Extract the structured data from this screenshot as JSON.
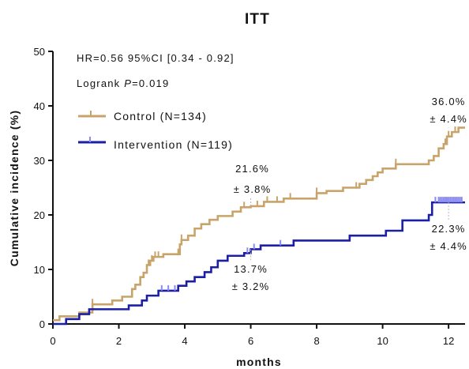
{
  "chart_data": {
    "type": "line",
    "chart_style": "kaplan-meier-step",
    "title": "ITT",
    "xlabel": "months",
    "ylabel": "Cumulative incidence (%)",
    "xlim": [
      0,
      12.5
    ],
    "ylim": [
      0,
      50
    ],
    "xticks": [
      0,
      2,
      4,
      6,
      8,
      10,
      12
    ],
    "yticks": [
      0,
      10,
      20,
      30,
      40,
      50
    ],
    "grid": false,
    "legend_position": "top-left",
    "stats": {
      "hr": "HR=0.56 95%CI [0.34 - 0.92]",
      "logrank_prefix": "Logrank ",
      "logrank_p": "P",
      "logrank_value": "=0.019"
    },
    "series": [
      {
        "name": "Control (N=134)",
        "color": "#C9A46A",
        "x": [
          0,
          0.2,
          0.5,
          0.8,
          1.2,
          1.6,
          1.8,
          2.1,
          2.4,
          2.5,
          2.65,
          2.75,
          2.85,
          2.95,
          3.05,
          3.2,
          3.35,
          3.85,
          3.9,
          4.1,
          4.3,
          4.5,
          4.75,
          5.0,
          5.45,
          5.7,
          5.85,
          6.0,
          6.1,
          6.4,
          7.0,
          7.5,
          8.0,
          8.3,
          8.8,
          9.3,
          9.5,
          9.7,
          9.85,
          10.0,
          10.2,
          10.4,
          11.3,
          11.4,
          11.55,
          11.7,
          11.85,
          11.95,
          12.1,
          12.3,
          12.5
        ],
        "y": [
          0.7,
          1.4,
          1.4,
          2.1,
          3.6,
          3.6,
          4.3,
          5.0,
          6.4,
          7.2,
          8.6,
          9.4,
          10.8,
          11.6,
          12.3,
          12.3,
          12.8,
          14.6,
          15.4,
          16.2,
          17.5,
          18.3,
          19.1,
          19.8,
          20.6,
          21.4,
          21.4,
          21.6,
          21.6,
          22.4,
          23.0,
          23.0,
          24.0,
          24.4,
          25.0,
          25.7,
          26.4,
          27.1,
          27.8,
          28.5,
          28.5,
          29.3,
          29.3,
          30.0,
          30.8,
          32.2,
          33.0,
          34.4,
          35.2,
          36.0,
          36.0
        ],
        "censor_x": [
          1.2,
          2.9,
          3.0,
          3.1,
          3.2,
          3.8,
          3.9,
          5.8,
          6.2,
          6.5,
          6.8,
          7.2,
          8.0,
          9.2,
          10.4,
          11.9,
          12.0,
          12.2
        ],
        "annotations": [
          {
            "x": 6.0,
            "y": 21.6,
            "value": "21.6%",
            "error": "± 3.8%"
          },
          {
            "x": 12.0,
            "y": 36.0,
            "value": "36.0%",
            "error": "± 4.4%"
          }
        ]
      },
      {
        "name": "Intervention (N=119)",
        "color": "#1A1FA6",
        "x": [
          0,
          0.4,
          0.8,
          1.1,
          1.15,
          2.3,
          2.7,
          2.85,
          3.2,
          3.4,
          3.8,
          4.05,
          4.3,
          4.6,
          4.8,
          5.0,
          5.3,
          5.8,
          6.0,
          6.3,
          6.9,
          7.3,
          7.7,
          8.5,
          9.0,
          9.6,
          10.1,
          10.3,
          10.6,
          11.1,
          11.4,
          11.5,
          12.5
        ],
        "y": [
          0,
          0.9,
          1.8,
          2.7,
          2.7,
          3.4,
          4.3,
          5.2,
          6.1,
          6.1,
          7.0,
          7.8,
          8.6,
          9.5,
          10.4,
          11.6,
          12.5,
          13.0,
          13.7,
          14.4,
          14.4,
          15.3,
          15.3,
          15.3,
          16.2,
          16.2,
          17.1,
          17.1,
          19.0,
          19.0,
          20.0,
          22.3,
          22.3
        ],
        "censor_x": [
          3.3,
          3.5,
          3.7,
          5.9,
          6.1,
          6.9,
          11.6,
          11.7,
          11.75,
          11.8,
          11.85,
          11.9,
          11.95,
          12.0,
          12.05,
          12.1,
          12.15,
          12.2,
          12.25,
          12.3,
          12.35,
          12.4
        ],
        "annotations": [
          {
            "x": 6.0,
            "y": 13.7,
            "value": "13.7%",
            "error": "± 3.2%"
          },
          {
            "x": 12.0,
            "y": 22.3,
            "value": "22.3%",
            "error": "± 4.4%"
          }
        ]
      }
    ]
  }
}
